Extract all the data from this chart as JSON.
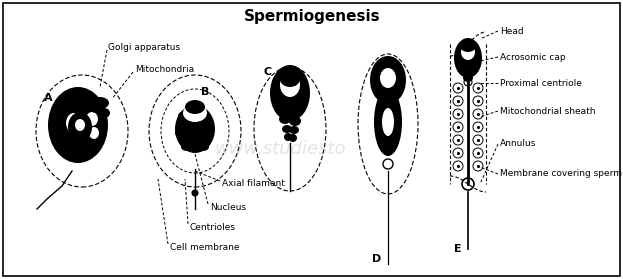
{
  "title": "Spermiogenesis",
  "title_fontsize": 11,
  "title_fontweight": "bold",
  "bg_color": "#ffffff",
  "border_color": "#000000",
  "labels_left": [
    "Golgi apparatus",
    "Mitochondria"
  ],
  "labels_bottom": [
    "Axial filament",
    "Nucleus",
    "Centrioles",
    "Cell membrane"
  ],
  "labels_right": [
    "Head",
    "Acrosomic cap",
    "Proximal centriole",
    "Mitochondrial sheath",
    "Annulus",
    "Membrane covering sperm"
  ],
  "stage_labels": [
    "A",
    "B",
    "C",
    "D",
    "E"
  ],
  "watermark": "www.studiesto"
}
